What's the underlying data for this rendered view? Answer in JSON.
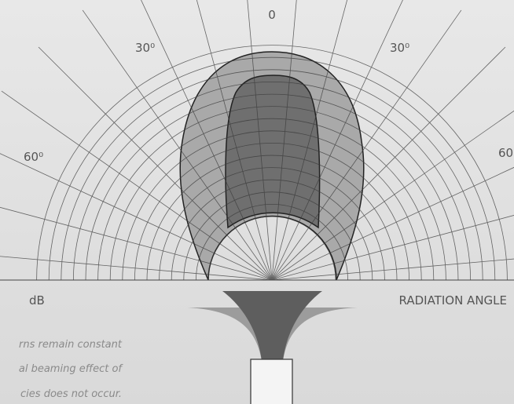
{
  "labels": {
    "zero": "0",
    "left_30": "30⁰",
    "right_30": "30⁰",
    "left_60": "60⁰",
    "right_60": "60",
    "db": "dB",
    "radiation_angle": "RADIATION ANGLE"
  },
  "caption": [
    "rns remain constant",
    "al beaming effect of",
    "cies does not occur."
  ]
}
